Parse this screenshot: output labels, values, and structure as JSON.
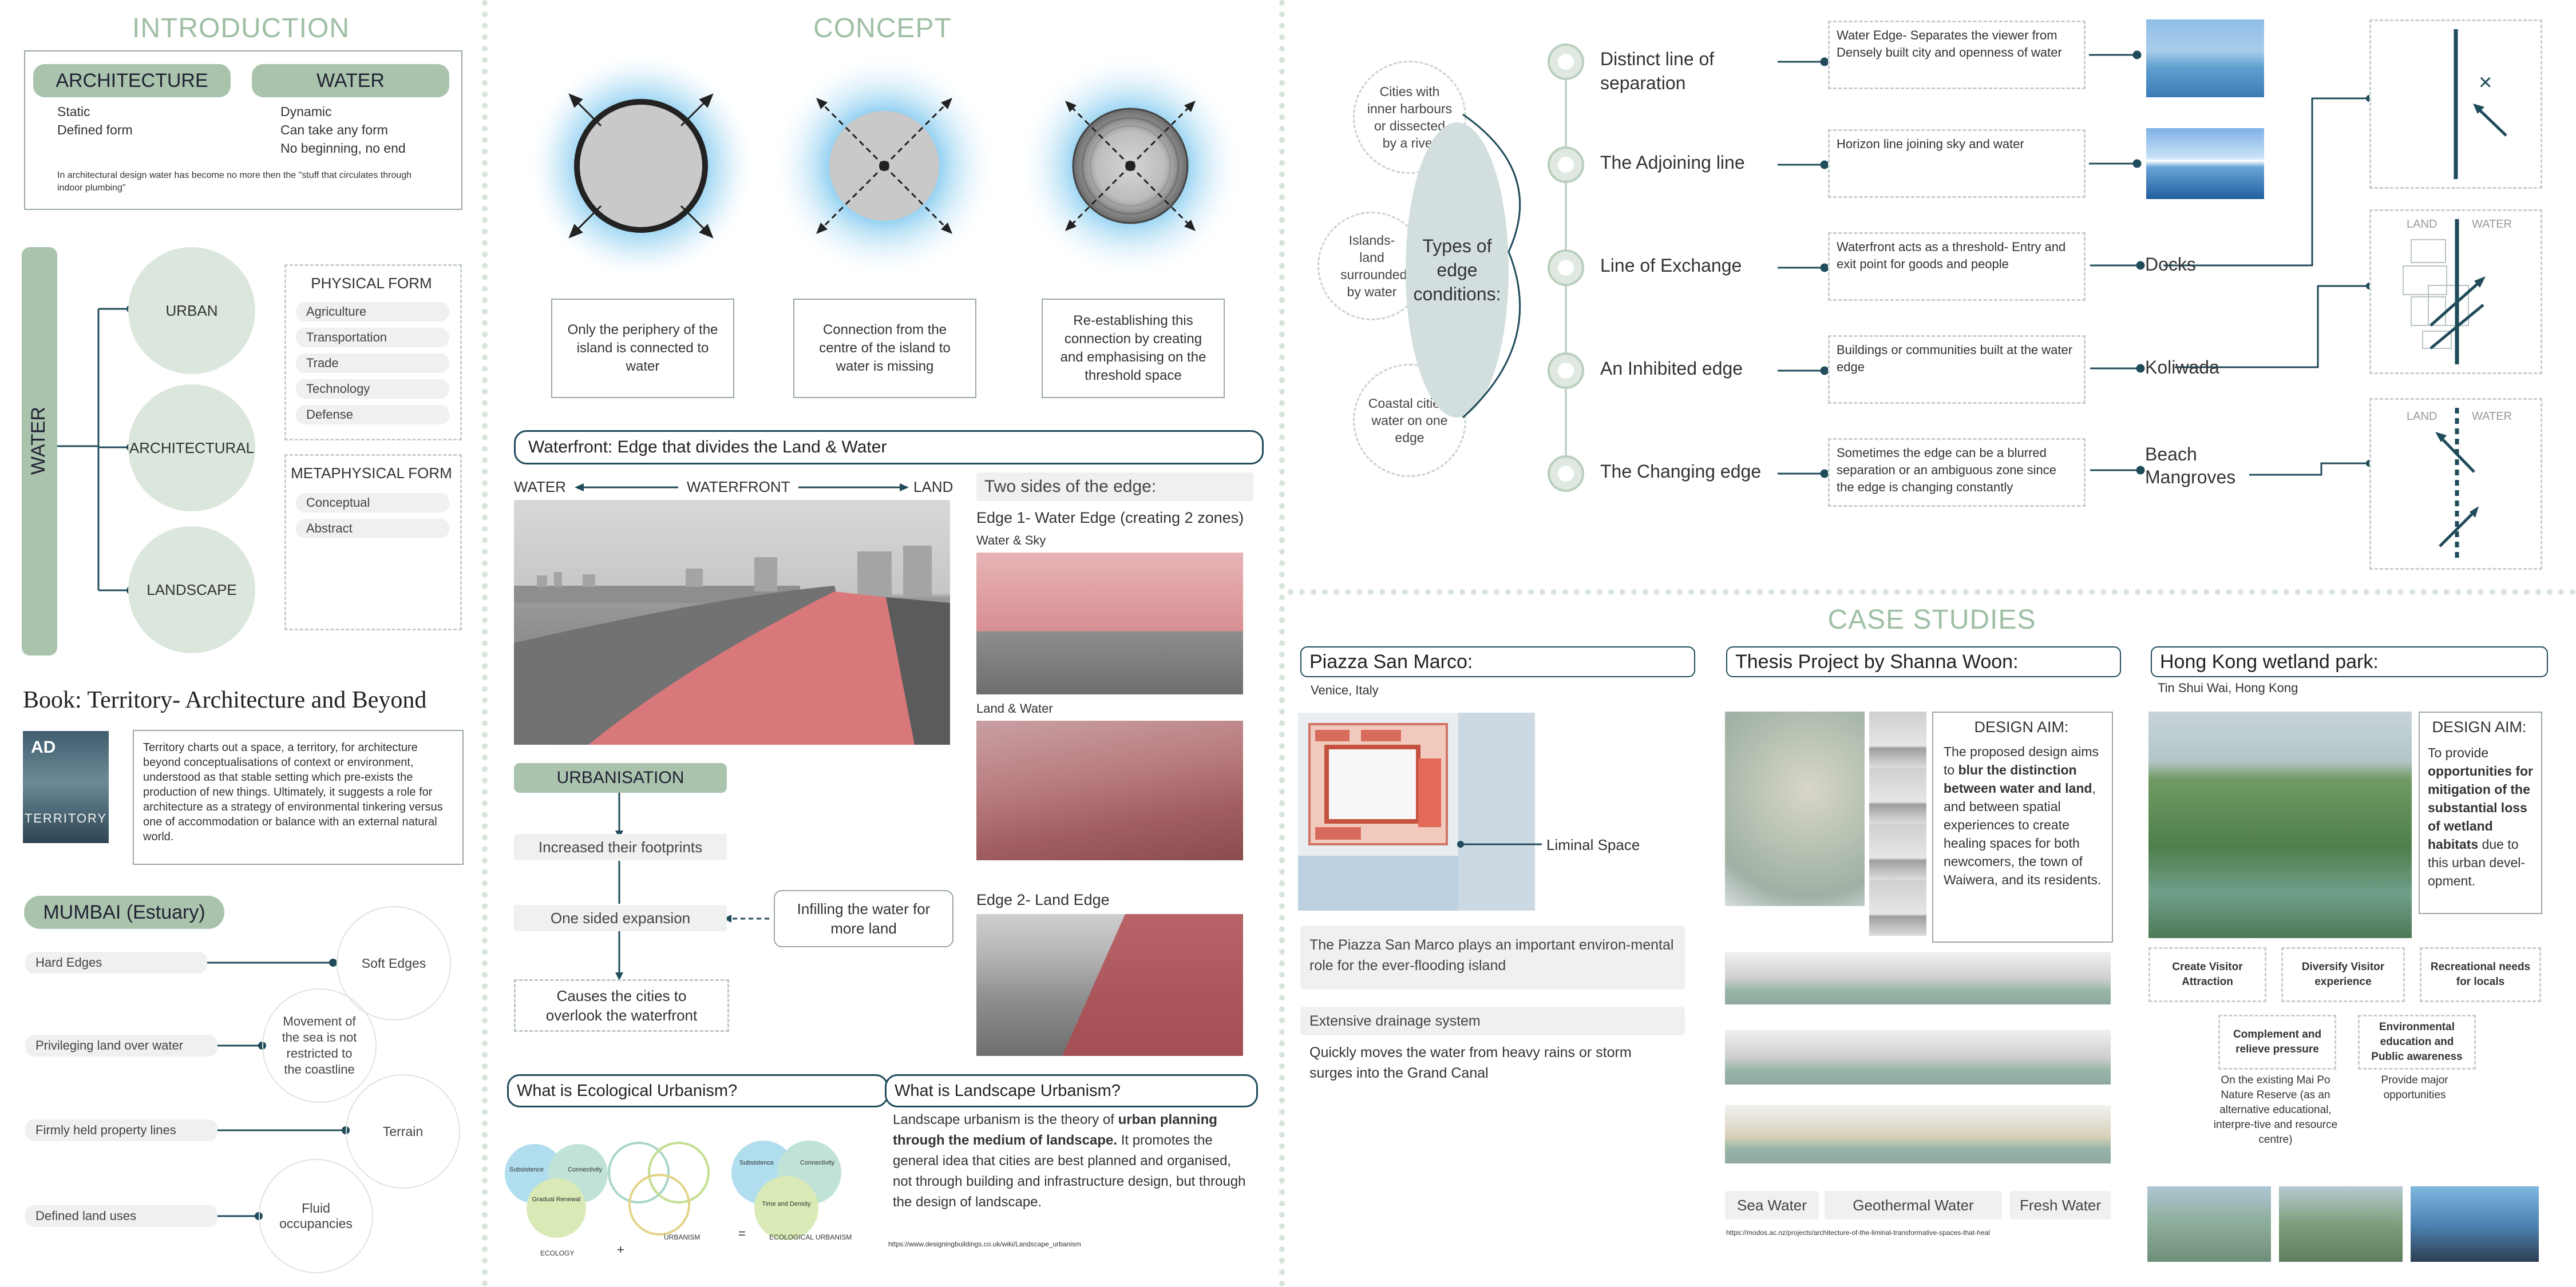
{
  "introduction": {
    "title": "INTRODUCTION",
    "architecture": {
      "label": "ARCHITECTURE",
      "lines": [
        "Static",
        "Defined form"
      ]
    },
    "water": {
      "label": "WATER",
      "lines": [
        "Dynamic",
        "Can take any form",
        "No beginning, no end"
      ]
    },
    "note": "In architectural design water has become no more then the \"stuff that circulates through indoor plumbing\""
  },
  "water_diagram": {
    "bar_label": "WATER",
    "nodes": [
      "URBAN",
      "ARCHITECTURAL",
      "LANDSCAPE"
    ],
    "physical": {
      "title": "PHYSICAL FORM",
      "items": [
        "Agriculture",
        "Transportation",
        "Trade",
        "Technology",
        "Defense"
      ]
    },
    "metaphysical": {
      "title": "METAPHYSICAL FORM",
      "items": [
        "Conceptual",
        "Abstract"
      ]
    }
  },
  "book": {
    "title": "Book: Territory- Architecture and Beyond",
    "cover_title": "TERRITORY",
    "cover_mark": "AD",
    "text": "Territory charts out a space, a territory, for architecture beyond conceptualisations of context or environment, understood as that stable setting which pre-exists the production of new things. Ultimately, it suggests a role for architecture as a strategy of environmental tinkering versus one of accommodation or balance with an external natural world."
  },
  "mumbai": {
    "title": "MUMBAI (Estuary)",
    "left": [
      "Hard Edges",
      "Privileging land over water",
      "Firmly held property lines",
      "Defined land uses"
    ],
    "right": [
      "Soft Edges",
      "Movement of the sea is not restricted to the coastline",
      "Terrain",
      "Fluid occupancies"
    ]
  },
  "concept": {
    "title": "CONCEPT",
    "captions": [
      "Only the periphery of the island is connected to water",
      "Connection from the centre of the island to water is missing",
      "Re-establishing this connection by creating and emphasising on the threshold space"
    ]
  },
  "waterfront": {
    "title": "Waterfront: Edge that divides the Land & Water",
    "axis": {
      "left": "WATER",
      "mid": "WATERFRONT",
      "right": "LAND"
    },
    "two_sides": "Two sides of the edge:",
    "edge1": "Edge 1- Water Edge (creating 2 zones)",
    "water_sky": "Water & Sky",
    "land_water": "Land & Water",
    "edge2": "Edge 2- Land Edge"
  },
  "urbanisation": {
    "title": "URBANISATION",
    "steps": [
      "Increased their footprints",
      "One sided expansion",
      "Causes the cities to overlook the waterfront"
    ],
    "side": "Infilling the water for more land"
  },
  "ecological": {
    "title": "What is Ecological Urbanism?",
    "labels": {
      "ecology": "ECOLOGY",
      "urbanism": "URBANISM",
      "eco_urbanism": "ECOLOGICAL URBANISM",
      "plus": "+",
      "equals": "="
    },
    "venn_a": [
      "Subsistence",
      "Connectivity",
      "Gradual Renewal"
    ],
    "venn_b": [
      "Subsistence",
      "Connectivity",
      "Time and Density"
    ]
  },
  "landscape": {
    "title": "What is Landscape Urbanism?",
    "intro": "Landscape urbanism is the theory of ",
    "bold": "urban planning through the medium of landscape.",
    "rest": " It promotes the general idea that cities are best planned and organised, not through building and infrastructure design, but through the design of landscape.",
    "link": "https://www.designingbuildings.co.uk/wiki/Landscape_urbanism"
  },
  "edges": {
    "types_label": "Types of edge conditions:",
    "bubbles": [
      "Cities with inner harbours or dissected by a river",
      "Islands- land surrounded by water",
      "Coastal cities- water on one edge"
    ],
    "rows": [
      {
        "name": "Distinct line of separation",
        "desc": "Water Edge- Separates the viewer from Densely built city and openness of water",
        "tag": ""
      },
      {
        "name": "The Adjoining line",
        "desc": "Horizon line joining sky and water",
        "tag": ""
      },
      {
        "name": "Line of Exchange",
        "desc": "Waterfront acts as a threshold- Entry and exit point for goods and people",
        "tag": "Docks"
      },
      {
        "name": "An Inhibited edge",
        "desc": "Buildings or communities built at the water edge",
        "tag": "Koliwada"
      },
      {
        "name": "The Changing edge",
        "desc": "Sometimes the edge can be a blurred separation or an ambiguous zone since the edge is changing constantly",
        "tag": "Beach\nMangroves"
      }
    ],
    "diagram_labels": {
      "land": "LAND",
      "water": "WATER"
    }
  },
  "case_studies": {
    "title": "CASE STUDIES",
    "piazza": {
      "title": "Piazza San Marco:",
      "location": "Venice, Italy",
      "liminal": "Liminal Space",
      "text1": "The Piazza San Marco plays an important environ-mental role for the ever-flooding island",
      "text2": "Extensive drainage system",
      "text3": "Quickly moves the water from heavy rains or storm surges into the Grand Canal"
    },
    "thesis": {
      "title": "Thesis Project by Shanna Woon:",
      "aim_title": "DESIGN AIM:",
      "aim_pre": "The proposed design aims to ",
      "aim_bold": "blur the distinction between water and land",
      "aim_post": ", and between spatial experiences to create healing spaces for both newcomers, the town of Waiwera, and its residents.",
      "tags": [
        "Sea Water",
        "Geothermal Water",
        "Fresh Water"
      ],
      "link": "https://modos.ac.nz/projects/architecture-of-the-liminal-transformative-spaces-that-heal"
    },
    "hongkong": {
      "title": "Hong Kong wetland park:",
      "location": "Tin Shui Wai, Hong Kong",
      "aim_title": "DESIGN AIM:",
      "aim_pre": "To provide ",
      "aim_bold": "opportunities for mitigation of the substantial loss of wetland habitats",
      "aim_post": " due to this urban devel-opment.",
      "goals": [
        "Create Visitor Attraction",
        "Diversify Visitor experience",
        "Recreational needs for locals",
        "Complement and relieve pressure",
        "Environmental education and Public awareness"
      ],
      "goal_notes": [
        "On the existing Mai Po Nature Reserve (as an alternative educational, interpre-tive and resource centre)",
        "Provide major opportunities"
      ]
    }
  },
  "colors": {
    "accent_green": "#aac3ad",
    "dark_teal": "#1f4b5a",
    "title_green": "#9fbfa4",
    "sea_red": "#d9787a"
  }
}
